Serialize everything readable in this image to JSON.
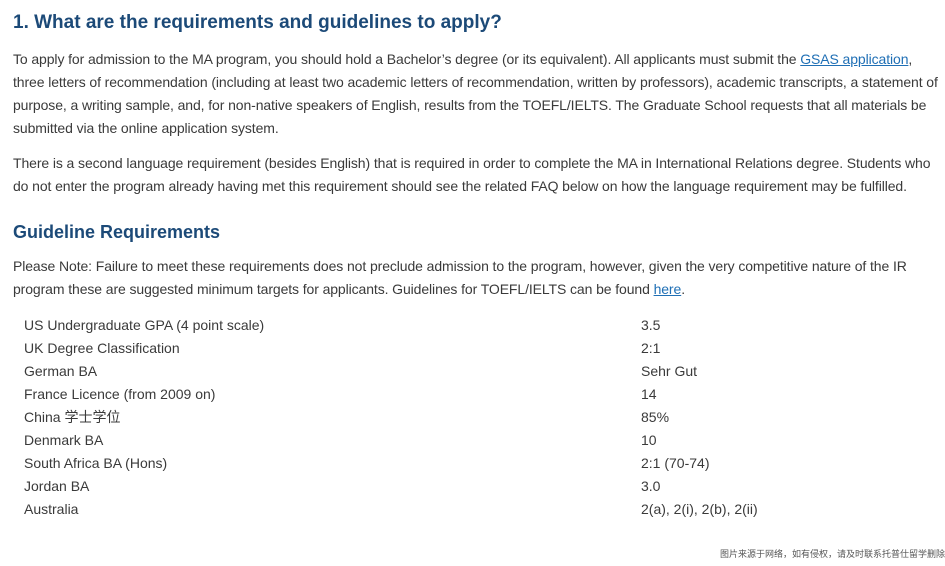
{
  "heading": "1. What are the requirements and guidelines to apply?",
  "intro": {
    "before": "To apply for admission to the MA program, you should hold a Bachelor’s degree (or its equivalent). All applicants must submit the ",
    "link": "GSAS application",
    "after": ", three letters of recommendation (including at least two academic letters of recommendation, written by professors), academic transcripts, a statement of purpose, a writing sample, and, for non-native speakers of English, results from the TOEFL/IELTS. The Graduate School requests that all materials be submitted via the online application system."
  },
  "language_paragraph": "There is a second language requirement (besides English) that is required in order to complete the MA in International Relations degree. Students who do not enter the program already having met this requirement should see the related FAQ below on how the language requirement may be fulfilled.",
  "subheading": "Guideline Requirements",
  "note": {
    "before": "Please Note: Failure to meet these requirements does not preclude admission to the program, however, given the very competitive nature of the IR program these are suggested minimum targets for applicants. Guidelines for TOEFL/IELTS can be found ",
    "link": "here",
    "after": "."
  },
  "table": {
    "rows": [
      [
        "US Undergraduate GPA (4 point scale)",
        "3.5"
      ],
      [
        "UK Degree Classification",
        "2:1"
      ],
      [
        "German BA",
        "Sehr Gut"
      ],
      [
        "France Licence (from 2009 on)",
        "14"
      ],
      [
        "China 学士学位",
        "85%"
      ],
      [
        "Denmark BA",
        "10"
      ],
      [
        "South Africa BA (Hons)",
        "2:1 (70-74)"
      ],
      [
        "Jordan BA",
        "3.0"
      ],
      [
        "Australia",
        "2(a), 2(i), 2(b), 2(ii)"
      ]
    ]
  },
  "watermark": "图片来源于网络，如有侵权，请及时联系托普仕留学删除"
}
